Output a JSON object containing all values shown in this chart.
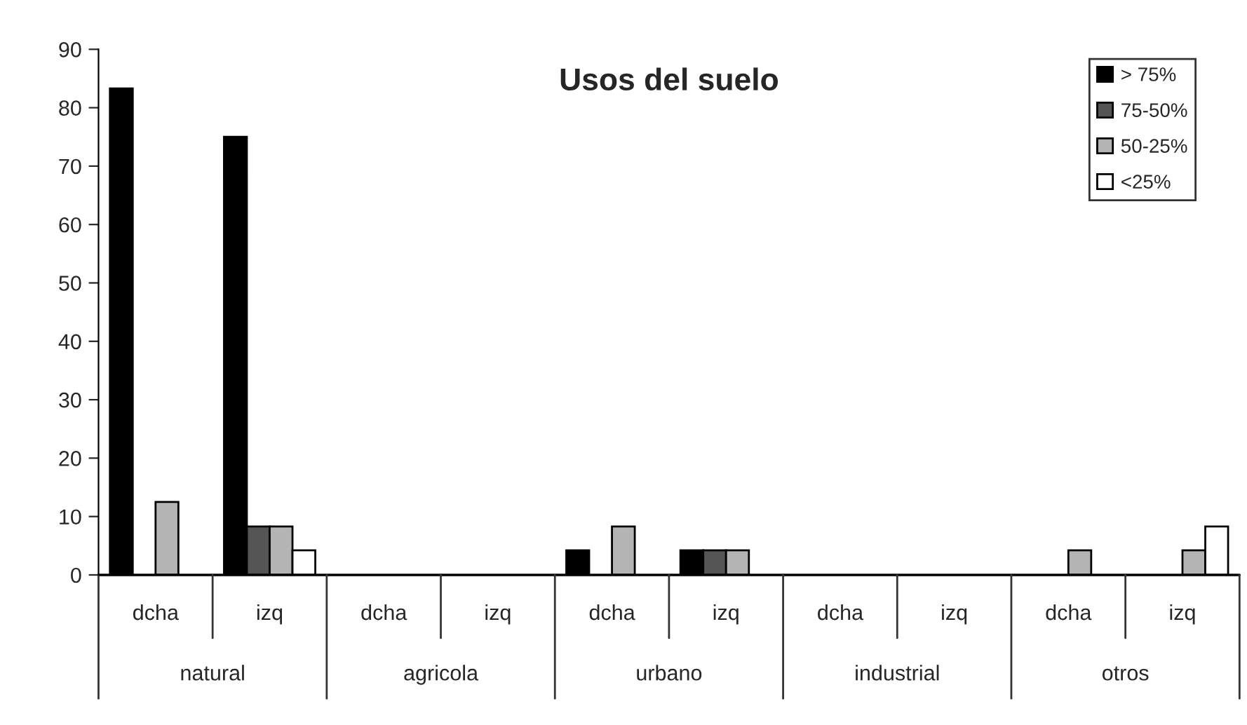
{
  "chart_data": {
    "type": "bar",
    "title": "Usos del suelo",
    "categories": [
      "dcha",
      "izq",
      "dcha",
      "izq",
      "dcha",
      "izq",
      "dcha",
      "izq",
      "dcha",
      "izq"
    ],
    "series": [
      {
        "name": "> 75%",
        "color": "#000000",
        "values": [
          83.3,
          75,
          null,
          null,
          4.2,
          4.2,
          null,
          null,
          null,
          null
        ]
      },
      {
        "name": "75-50%",
        "color": "#555555",
        "values": [
          null,
          8.3,
          null,
          null,
          null,
          4.2,
          null,
          null,
          null,
          null
        ]
      },
      {
        "name": "50-25%",
        "color": "#b4b4b4",
        "values": [
          12.5,
          8.3,
          null,
          null,
          8.3,
          4.2,
          null,
          null,
          4.2,
          4.2
        ]
      },
      {
        "name": "<25%",
        "color": "#ffffff",
        "values": [
          null,
          4.2,
          null,
          null,
          null,
          null,
          null,
          null,
          null,
          8.3
        ]
      }
    ],
    "annotations": [
      "natural",
      "agricola",
      "urbano",
      "industrial",
      "otros"
    ],
    "ylim": [
      0,
      90
    ],
    "yticks": [
      0,
      10,
      20,
      30,
      40,
      50,
      60,
      70,
      80,
      90
    ],
    "grid": false,
    "legend": "top right"
  }
}
